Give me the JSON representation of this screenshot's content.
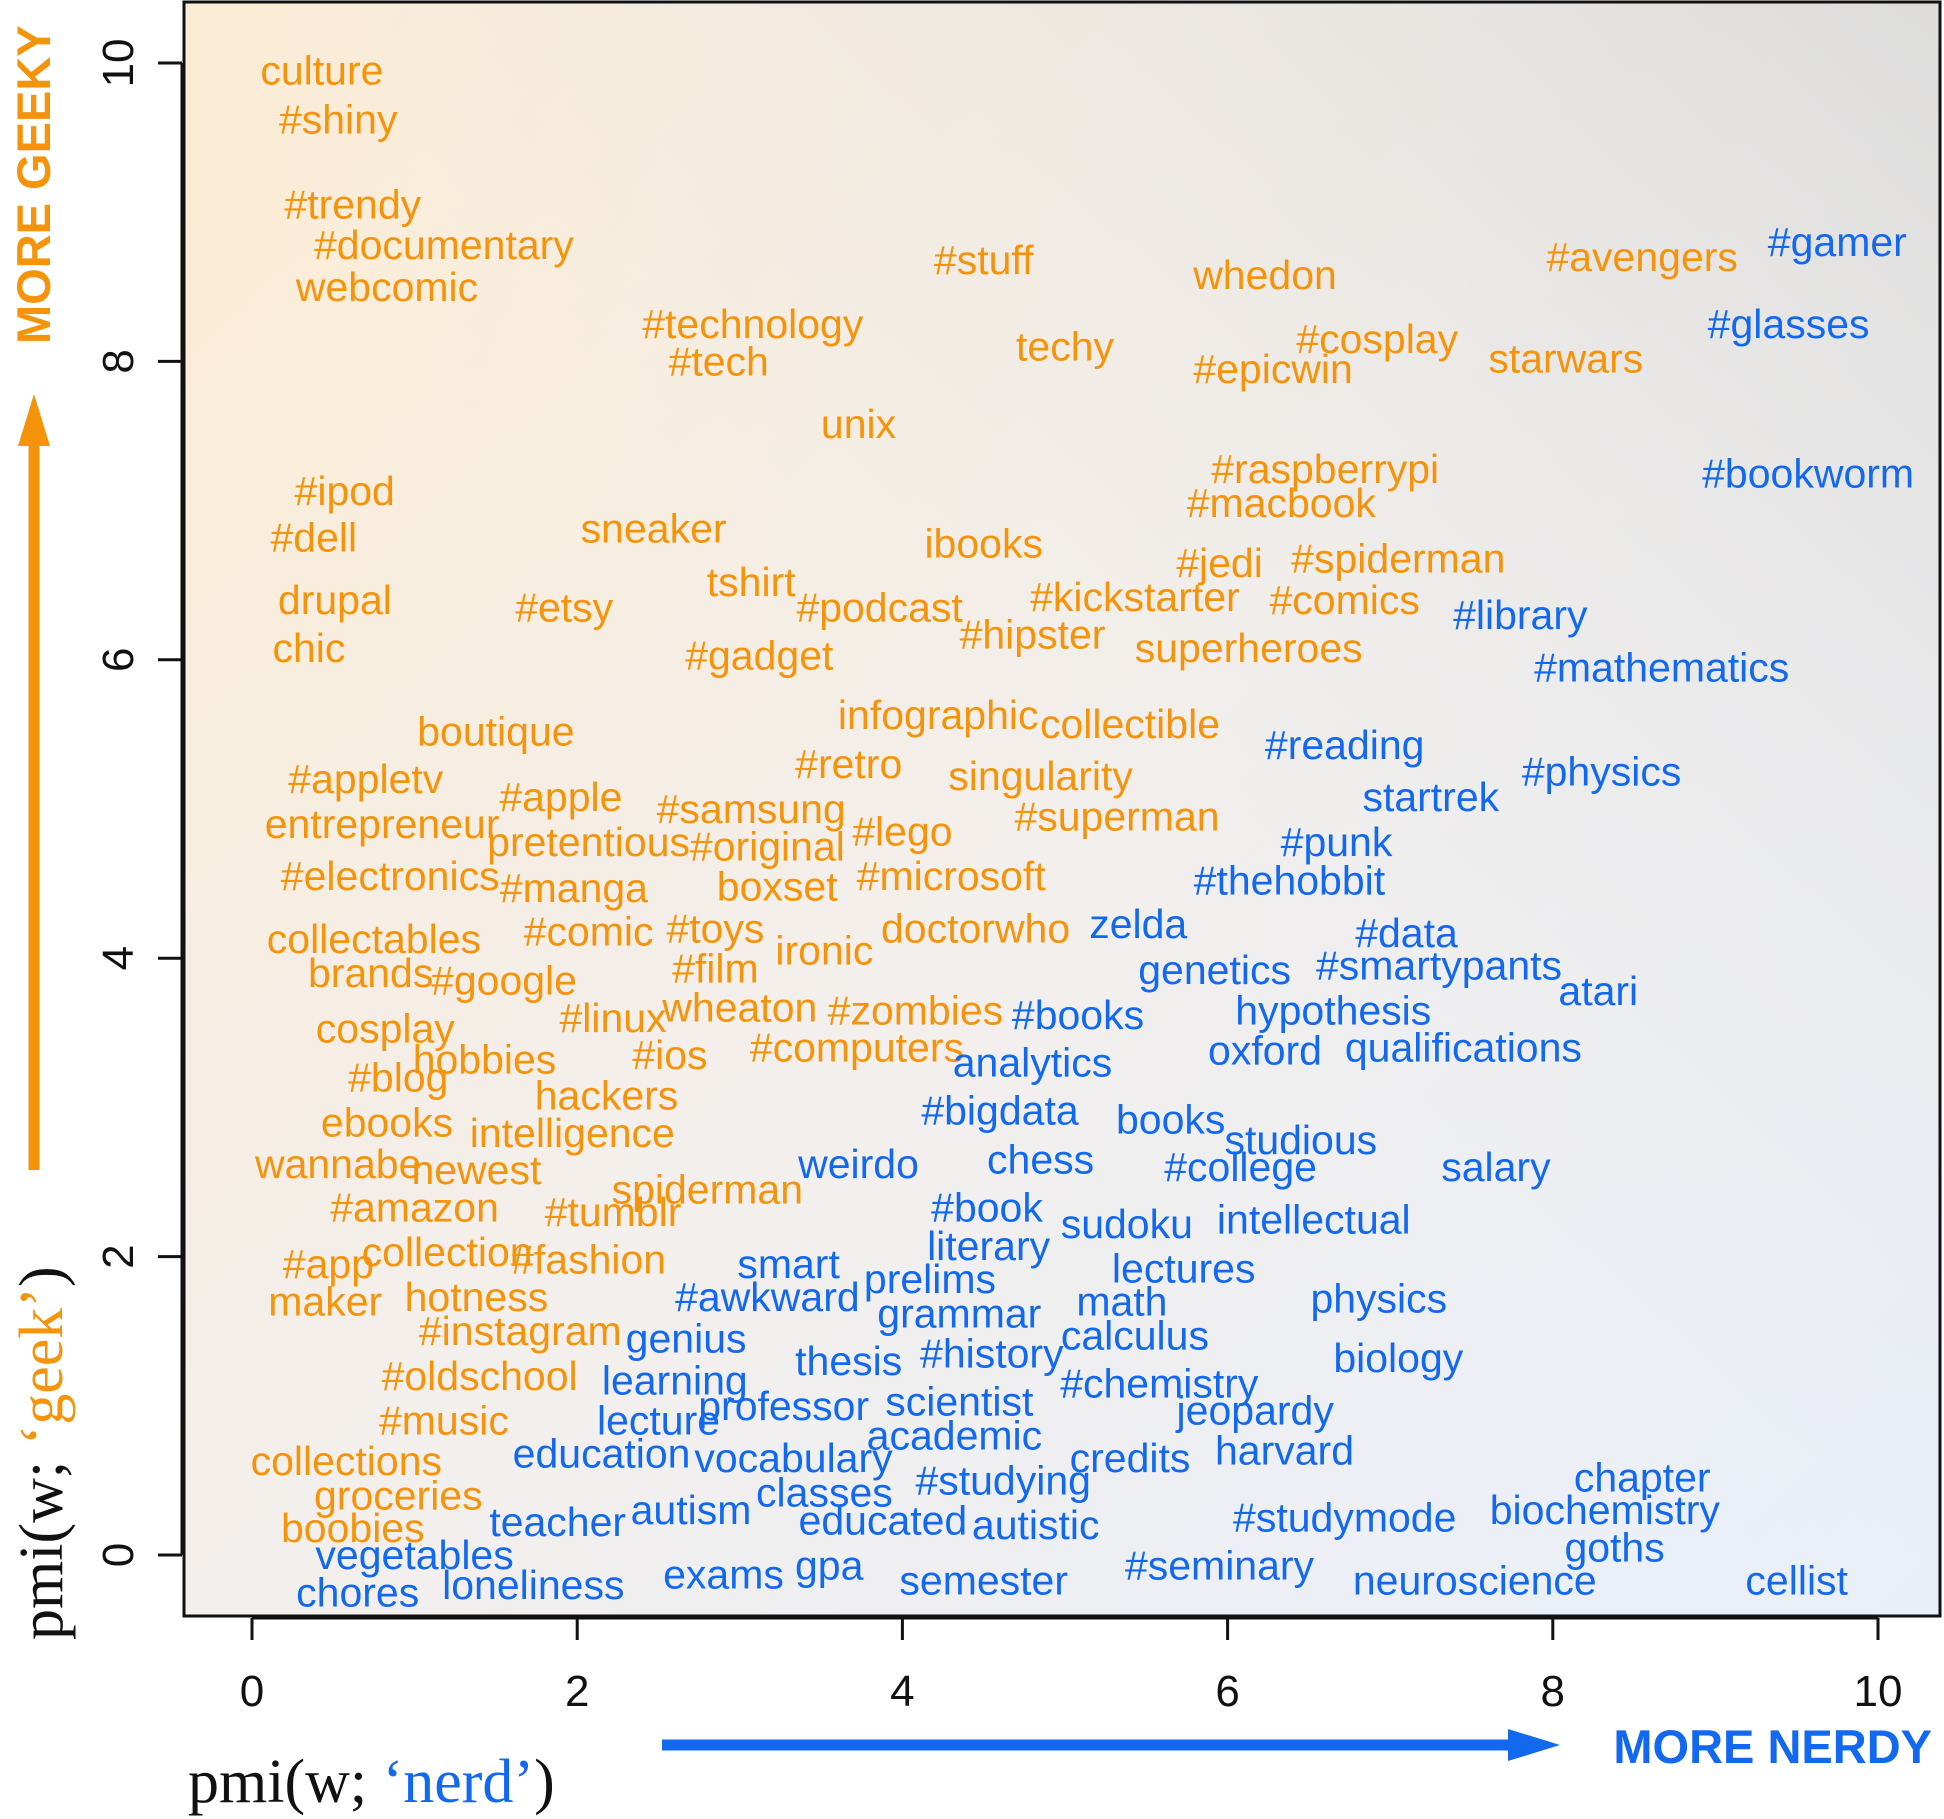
{
  "colors": {
    "geek": "#f5930a",
    "nerd": "#1269f0",
    "frame": "#111111"
  },
  "chart_data": {
    "type": "scatter",
    "marker": "text",
    "title": "",
    "xlabel": {
      "prefix": "pmi(w; ",
      "term": "‘nerd’",
      "suffix": ")"
    },
    "ylabel": {
      "prefix": "pmi(w; ",
      "term": "‘geek’",
      "suffix": ")"
    },
    "x_direction_label": "MORE NERDY",
    "y_direction_label": "MORE GEEKY",
    "xlim": [
      0,
      10
    ],
    "ylim": [
      0,
      10
    ],
    "xticks": [
      "0",
      "2",
      "4",
      "6",
      "8",
      "10"
    ],
    "yticks": [
      "0",
      "2",
      "4",
      "6",
      "8",
      "10"
    ],
    "grid": false,
    "background": "gradient",
    "groups": [
      {
        "color": "geek",
        "points": [
          {
            "label": "culture",
            "x": 0.43,
            "y": 9.95
          },
          {
            "label": "#shiny",
            "x": 0.53,
            "y": 9.62
          },
          {
            "label": "#trendy",
            "x": 0.62,
            "y": 9.05
          },
          {
            "label": "#documentary",
            "x": 1.18,
            "y": 8.78
          },
          {
            "label": "webcomic",
            "x": 0.83,
            "y": 8.5
          },
          {
            "label": "#technology",
            "x": 3.08,
            "y": 8.25
          },
          {
            "label": "#tech",
            "x": 2.87,
            "y": 8.0
          },
          {
            "label": "#stuff",
            "x": 4.5,
            "y": 8.68
          },
          {
            "label": "whedon",
            "x": 6.23,
            "y": 8.58
          },
          {
            "label": "#avengers",
            "x": 8.55,
            "y": 8.7
          },
          {
            "label": "techy",
            "x": 5.0,
            "y": 8.1
          },
          {
            "label": "#cosplay",
            "x": 6.92,
            "y": 8.15
          },
          {
            "label": "#epicwin",
            "x": 6.28,
            "y": 7.95
          },
          {
            "label": "starwars",
            "x": 8.08,
            "y": 8.02
          },
          {
            "label": "unix",
            "x": 3.73,
            "y": 7.58
          },
          {
            "label": "#raspberrypi",
            "x": 6.6,
            "y": 7.28
          },
          {
            "label": "#macbook",
            "x": 6.33,
            "y": 7.05
          },
          {
            "label": "#ipod",
            "x": 0.57,
            "y": 7.13
          },
          {
            "label": "#dell",
            "x": 0.38,
            "y": 6.82
          },
          {
            "label": "sneaker",
            "x": 2.47,
            "y": 6.88
          },
          {
            "label": "ibooks",
            "x": 4.5,
            "y": 6.78
          },
          {
            "label": "tshirt",
            "x": 3.07,
            "y": 6.52
          },
          {
            "label": "#jedi",
            "x": 5.95,
            "y": 6.65
          },
          {
            "label": "#spiderman",
            "x": 7.05,
            "y": 6.68
          },
          {
            "label": "drupal",
            "x": 0.51,
            "y": 6.4
          },
          {
            "label": "#etsy",
            "x": 1.92,
            "y": 6.35
          },
          {
            "label": "#podcast",
            "x": 3.86,
            "y": 6.35
          },
          {
            "label": "#kickstarter",
            "x": 5.43,
            "y": 6.42
          },
          {
            "label": "#comics",
            "x": 6.72,
            "y": 6.4
          },
          {
            "label": "#hipster",
            "x": 4.8,
            "y": 6.17
          },
          {
            "label": "chic",
            "x": 0.35,
            "y": 6.08
          },
          {
            "label": "#gadget",
            "x": 3.12,
            "y": 6.03
          },
          {
            "label": "superheroes",
            "x": 6.13,
            "y": 6.08
          },
          {
            "label": "infographic",
            "x": 4.22,
            "y": 5.63
          },
          {
            "label": "collectible",
            "x": 5.4,
            "y": 5.57
          },
          {
            "label": "boutique",
            "x": 1.5,
            "y": 5.52
          },
          {
            "label": "#retro",
            "x": 3.67,
            "y": 5.3
          },
          {
            "label": "singularity",
            "x": 4.85,
            "y": 5.22
          },
          {
            "label": "#appletv",
            "x": 0.7,
            "y": 5.2
          },
          {
            "label": "#apple",
            "x": 1.9,
            "y": 5.08
          },
          {
            "label": "#samsung",
            "x": 3.07,
            "y": 5.0
          },
          {
            "label": "#superman",
            "x": 5.32,
            "y": 4.95
          },
          {
            "label": "entrepreneur",
            "x": 0.8,
            "y": 4.9
          },
          {
            "label": "pretentious",
            "x": 2.07,
            "y": 4.78
          },
          {
            "label": "#original",
            "x": 3.17,
            "y": 4.75
          },
          {
            "label": "#lego",
            "x": 4.0,
            "y": 4.85
          },
          {
            "label": "boxset",
            "x": 3.23,
            "y": 4.48
          },
          {
            "label": "#microsoft",
            "x": 4.3,
            "y": 4.55
          },
          {
            "label": "#electronics",
            "x": 0.85,
            "y": 4.55
          },
          {
            "label": "#manga",
            "x": 1.98,
            "y": 4.47
          },
          {
            "label": "#toys",
            "x": 2.85,
            "y": 4.2
          },
          {
            "label": "doctorwho",
            "x": 4.45,
            "y": 4.2
          },
          {
            "label": "#comic",
            "x": 2.07,
            "y": 4.18
          },
          {
            "label": "collectables",
            "x": 0.75,
            "y": 4.13
          },
          {
            "label": "ironic",
            "x": 3.52,
            "y": 4.05
          },
          {
            "label": "brands",
            "x": 0.73,
            "y": 3.9
          },
          {
            "label": "#google",
            "x": 1.55,
            "y": 3.85
          },
          {
            "label": "#film",
            "x": 2.85,
            "y": 3.93
          },
          {
            "label": "wheaton",
            "x": 3.0,
            "y": 3.67
          },
          {
            "label": "#zombies",
            "x": 4.08,
            "y": 3.65
          },
          {
            "label": "#linux",
            "x": 2.22,
            "y": 3.6
          },
          {
            "label": "cosplay",
            "x": 0.82,
            "y": 3.53
          },
          {
            "label": "#computers",
            "x": 3.72,
            "y": 3.4
          },
          {
            "label": "#ios",
            "x": 2.57,
            "y": 3.35
          },
          {
            "label": "hobbies",
            "x": 1.43,
            "y": 3.32
          },
          {
            "label": "#blog",
            "x": 0.9,
            "y": 3.2
          },
          {
            "label": "hackers",
            "x": 2.18,
            "y": 3.08
          },
          {
            "label": "ebooks",
            "x": 0.83,
            "y": 2.9
          },
          {
            "label": "intelligence",
            "x": 1.97,
            "y": 2.83
          },
          {
            "label": "wannabe",
            "x": 0.53,
            "y": 2.62
          },
          {
            "label": "newest",
            "x": 1.38,
            "y": 2.58
          },
          {
            "label": "spiderman",
            "x": 2.8,
            "y": 2.45
          },
          {
            "label": "#amazon",
            "x": 1.0,
            "y": 2.33
          },
          {
            "label": "#tumblr",
            "x": 2.22,
            "y": 2.3
          },
          {
            "label": "#app",
            "x": 0.47,
            "y": 1.95
          },
          {
            "label": "collection",
            "x": 1.2,
            "y": 2.03
          },
          {
            "label": "#fashion",
            "x": 2.07,
            "y": 1.98
          },
          {
            "label": "maker",
            "x": 0.45,
            "y": 1.7
          },
          {
            "label": "hotness",
            "x": 1.38,
            "y": 1.73
          },
          {
            "label": "#instagram",
            "x": 1.65,
            "y": 1.5
          },
          {
            "label": "#oldschool",
            "x": 1.4,
            "y": 1.2
          },
          {
            "label": "#music",
            "x": 1.18,
            "y": 0.9
          },
          {
            "label": "collections",
            "x": 0.58,
            "y": 0.63
          },
          {
            "label": "groceries",
            "x": 0.9,
            "y": 0.4
          },
          {
            "label": "boobies",
            "x": 0.62,
            "y": 0.18
          }
        ]
      },
      {
        "color": "nerd",
        "points": [
          {
            "label": "#gamer",
            "x": 9.75,
            "y": 8.8
          },
          {
            "label": "#glasses",
            "x": 9.45,
            "y": 8.25
          },
          {
            "label": "#bookworm",
            "x": 9.57,
            "y": 7.25
          },
          {
            "label": "#library",
            "x": 7.8,
            "y": 6.3
          },
          {
            "label": "#mathematics",
            "x": 8.67,
            "y": 5.95
          },
          {
            "label": "#reading",
            "x": 6.72,
            "y": 5.43
          },
          {
            "label": "startrek",
            "x": 7.25,
            "y": 5.08
          },
          {
            "label": "#physics",
            "x": 8.3,
            "y": 5.25
          },
          {
            "label": "#punk",
            "x": 6.67,
            "y": 4.78
          },
          {
            "label": "#thehobbit",
            "x": 6.38,
            "y": 4.52
          },
          {
            "label": "zelda",
            "x": 5.45,
            "y": 4.23
          },
          {
            "label": "#data",
            "x": 7.1,
            "y": 4.17
          },
          {
            "label": "genetics",
            "x": 5.92,
            "y": 3.92
          },
          {
            "label": "#smartypants",
            "x": 7.3,
            "y": 3.95
          },
          {
            "label": "atari",
            "x": 8.28,
            "y": 3.78
          },
          {
            "label": "#books",
            "x": 5.08,
            "y": 3.62
          },
          {
            "label": "hypothesis",
            "x": 6.65,
            "y": 3.65
          },
          {
            "label": "analytics",
            "x": 4.8,
            "y": 3.3
          },
          {
            "label": "oxford",
            "x": 6.23,
            "y": 3.38
          },
          {
            "label": "qualifications",
            "x": 7.45,
            "y": 3.4
          },
          {
            "label": "#bigdata",
            "x": 4.6,
            "y": 2.98
          },
          {
            "label": "books",
            "x": 5.65,
            "y": 2.92
          },
          {
            "label": "studious",
            "x": 6.45,
            "y": 2.78
          },
          {
            "label": "weirdo",
            "x": 3.73,
            "y": 2.62
          },
          {
            "label": "chess",
            "x": 4.85,
            "y": 2.65
          },
          {
            "label": "#college",
            "x": 6.08,
            "y": 2.6
          },
          {
            "label": "salary",
            "x": 7.65,
            "y": 2.6
          },
          {
            "label": "#book",
            "x": 4.52,
            "y": 2.33
          },
          {
            "label": "sudoku",
            "x": 5.38,
            "y": 2.22
          },
          {
            "label": "intellectual",
            "x": 6.53,
            "y": 2.25
          },
          {
            "label": "literary",
            "x": 4.53,
            "y": 2.07
          },
          {
            "label": "lectures",
            "x": 5.73,
            "y": 1.92
          },
          {
            "label": "smart",
            "x": 3.3,
            "y": 1.95
          },
          {
            "label": "prelims",
            "x": 4.17,
            "y": 1.85
          },
          {
            "label": "#awkward",
            "x": 3.17,
            "y": 1.73
          },
          {
            "label": "math",
            "x": 5.35,
            "y": 1.7
          },
          {
            "label": "physics",
            "x": 6.93,
            "y": 1.72
          },
          {
            "label": "grammar",
            "x": 4.35,
            "y": 1.62
          },
          {
            "label": "calculus",
            "x": 5.43,
            "y": 1.47
          },
          {
            "label": "genius",
            "x": 2.67,
            "y": 1.45
          },
          {
            "label": "thesis",
            "x": 3.67,
            "y": 1.3
          },
          {
            "label": "#history",
            "x": 4.55,
            "y": 1.35
          },
          {
            "label": "biology",
            "x": 7.05,
            "y": 1.32
          },
          {
            "label": "#chemistry",
            "x": 5.58,
            "y": 1.15
          },
          {
            "label": "learning",
            "x": 2.6,
            "y": 1.17
          },
          {
            "label": "professor",
            "x": 3.27,
            "y": 1.0
          },
          {
            "label": "scientist",
            "x": 4.35,
            "y": 1.03
          },
          {
            "label": "jeopardy",
            "x": 6.17,
            "y": 0.97
          },
          {
            "label": "lecture",
            "x": 2.5,
            "y": 0.9
          },
          {
            "label": "harvard",
            "x": 6.35,
            "y": 0.7
          },
          {
            "label": "academic",
            "x": 4.32,
            "y": 0.8
          },
          {
            "label": "education",
            "x": 2.15,
            "y": 0.68
          },
          {
            "label": "vocabulary",
            "x": 3.33,
            "y": 0.65
          },
          {
            "label": "credits",
            "x": 5.4,
            "y": 0.65
          },
          {
            "label": "chapter",
            "x": 8.55,
            "y": 0.52
          },
          {
            "label": "#studying",
            "x": 4.62,
            "y": 0.5
          },
          {
            "label": "classes",
            "x": 3.52,
            "y": 0.42
          },
          {
            "label": "autism",
            "x": 2.7,
            "y": 0.3
          },
          {
            "label": "#studymode",
            "x": 6.72,
            "y": 0.25
          },
          {
            "label": "biochemistry",
            "x": 8.32,
            "y": 0.3
          },
          {
            "label": "teacher",
            "x": 1.88,
            "y": 0.22
          },
          {
            "label": "educated",
            "x": 3.88,
            "y": 0.23
          },
          {
            "label": "autistic",
            "x": 4.82,
            "y": 0.2
          },
          {
            "label": "goths",
            "x": 8.38,
            "y": 0.05
          },
          {
            "label": "vegetables",
            "x": 1.0,
            "y": 0.0
          },
          {
            "label": "#seminary",
            "x": 5.95,
            "y": -0.07
          },
          {
            "label": "gpa",
            "x": 3.55,
            "y": -0.07
          },
          {
            "label": "exams",
            "x": 2.9,
            "y": -0.13
          },
          {
            "label": "semester",
            "x": 4.5,
            "y": -0.17
          },
          {
            "label": "neuroscience",
            "x": 7.52,
            "y": -0.17
          },
          {
            "label": "cellist",
            "x": 9.5,
            "y": -0.17
          },
          {
            "label": "chores",
            "x": 0.65,
            "y": -0.25
          },
          {
            "label": "loneliness",
            "x": 1.73,
            "y": -0.2
          }
        ]
      }
    ]
  }
}
